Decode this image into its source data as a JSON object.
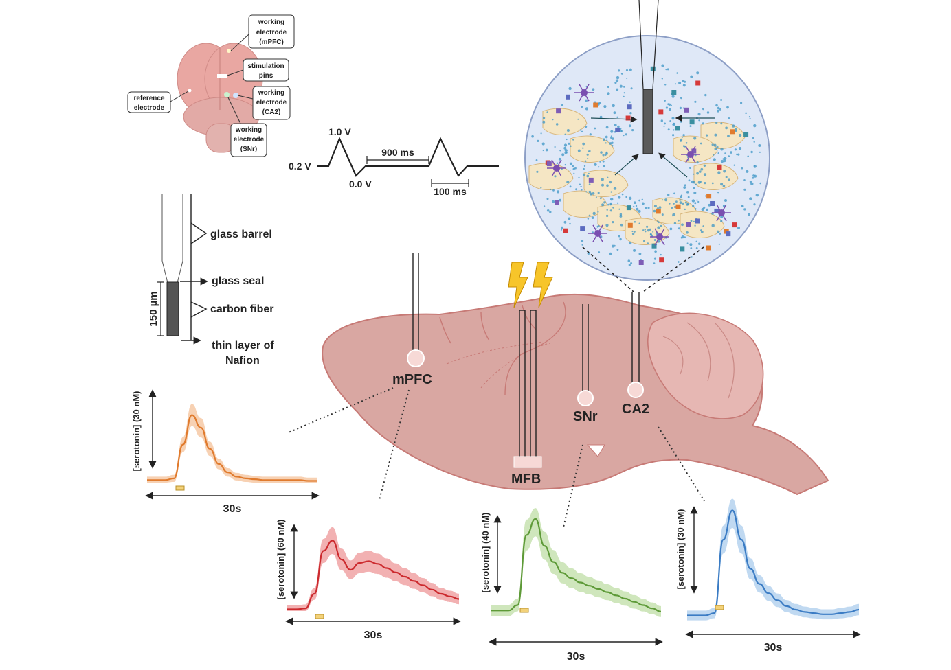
{
  "brain_top_view": {
    "callouts": [
      {
        "id": "wm",
        "lines": [
          "working",
          "electrode",
          "(mPFC)"
        ]
      },
      {
        "id": "stim",
        "lines": [
          "stimulation",
          "pins"
        ]
      },
      {
        "id": "ref",
        "lines": [
          "reference",
          "electrode"
        ]
      },
      {
        "id": "wca2",
        "lines": [
          "working",
          "electrode",
          "(CA2)"
        ]
      },
      {
        "id": "wsnr",
        "lines": [
          "working",
          "electrode",
          "(SNr)"
        ]
      }
    ]
  },
  "waveform": {
    "v_high": "1.0 V",
    "v_rest": "0.2 V",
    "v_low": "0.0 V",
    "interval": "900 ms",
    "scan": "100 ms"
  },
  "electrode": {
    "glass_barrel": "glass barrel",
    "glass_seal": "glass seal",
    "carbon_fiber": "carbon fiber",
    "nafion_line1": "thin layer of",
    "nafion_line2": "Nafion",
    "length": "150 µm"
  },
  "regions": {
    "mpfc": "mPFC",
    "mfb": "MFB",
    "snr": "SNr",
    "ca2": "CA2"
  },
  "traces": [
    {
      "id": "mpfc",
      "ylabel": "[serotonin] (30 nM)",
      "xlabel": "30s",
      "color": "#e07b2e",
      "band": "#f6c9a6"
    },
    {
      "id": "mfb",
      "ylabel": "[serotonin] (60 nM)",
      "xlabel": "30s",
      "color": "#cc2a2e",
      "band": "#f0a3a4"
    },
    {
      "id": "snr",
      "ylabel": "[serotonin] (40 nM)",
      "xlabel": "30s",
      "color": "#5e9a38",
      "band": "#c7e2b0"
    },
    {
      "id": "ca2",
      "ylabel": "[serotonin] (30 nM)",
      "xlabel": "30s",
      "color": "#3b7cc4",
      "band": "#b5d2ee"
    }
  ],
  "chart_data": [
    {
      "type": "line",
      "series": [
        {
          "values": [
            0.03,
            0.03,
            0.03,
            0.05,
            0.45,
            0.8,
            0.65,
            0.4,
            0.22,
            0.12,
            0.07,
            0.05,
            0.04,
            0.03,
            0.03,
            0.03,
            0.03,
            0.03,
            0.02,
            0.02
          ]
        }
      ],
      "xlabel": "30s",
      "ylabel": "[serotonin] (30 nM)"
    },
    {
      "type": "line",
      "series": [
        {
          "values": [
            0.02,
            0.02,
            0.03,
            0.2,
            0.7,
            0.82,
            0.6,
            0.48,
            0.56,
            0.58,
            0.55,
            0.5,
            0.45,
            0.4,
            0.35,
            0.3,
            0.25,
            0.2,
            0.17,
            0.14
          ]
        }
      ],
      "xlabel": "30s",
      "ylabel": "[serotonin] (60 nM)"
    },
    {
      "type": "line",
      "series": [
        {
          "values": [
            0.1,
            0.1,
            0.1,
            0.15,
            0.8,
            0.95,
            0.7,
            0.55,
            0.45,
            0.4,
            0.36,
            0.33,
            0.3,
            0.27,
            0.24,
            0.21,
            0.18,
            0.15,
            0.12,
            0.09
          ]
        }
      ],
      "xlabel": "30s",
      "ylabel": "[serotonin] (40 nM)"
    },
    {
      "type": "line",
      "series": [
        {
          "values": [
            0.05,
            0.05,
            0.05,
            0.07,
            0.7,
            0.95,
            0.7,
            0.45,
            0.32,
            0.24,
            0.18,
            0.13,
            0.1,
            0.08,
            0.07,
            0.06,
            0.06,
            0.07,
            0.08,
            0.1
          ]
        }
      ],
      "xlabel": "30s",
      "ylabel": "[serotonin] (30 nM)"
    }
  ]
}
